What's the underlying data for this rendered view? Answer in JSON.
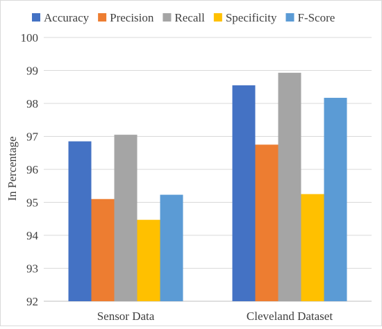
{
  "chart_data": {
    "type": "bar",
    "title": "",
    "xlabel": "",
    "ylabel": "In Percentage",
    "ylim": [
      92,
      100
    ],
    "yticks": [
      92,
      93,
      94,
      95,
      96,
      97,
      98,
      99,
      100
    ],
    "grid": true,
    "legend": "top",
    "categories": [
      "Sensor Data",
      "Cleveland Dataset"
    ],
    "series": [
      {
        "name": "Accuracy",
        "color": "#4472C4",
        "values": [
          96.85,
          98.55
        ]
      },
      {
        "name": "Precision",
        "color": "#ED7D31",
        "values": [
          95.1,
          96.75
        ]
      },
      {
        "name": "Recall",
        "color": "#A5A5A5",
        "values": [
          97.05,
          98.93
        ]
      },
      {
        "name": "Specificity",
        "color": "#FFC000",
        "values": [
          94.47,
          95.25
        ]
      },
      {
        "name": "F-Score",
        "color": "#5B9BD5",
        "values": [
          95.23,
          98.17
        ]
      }
    ]
  }
}
